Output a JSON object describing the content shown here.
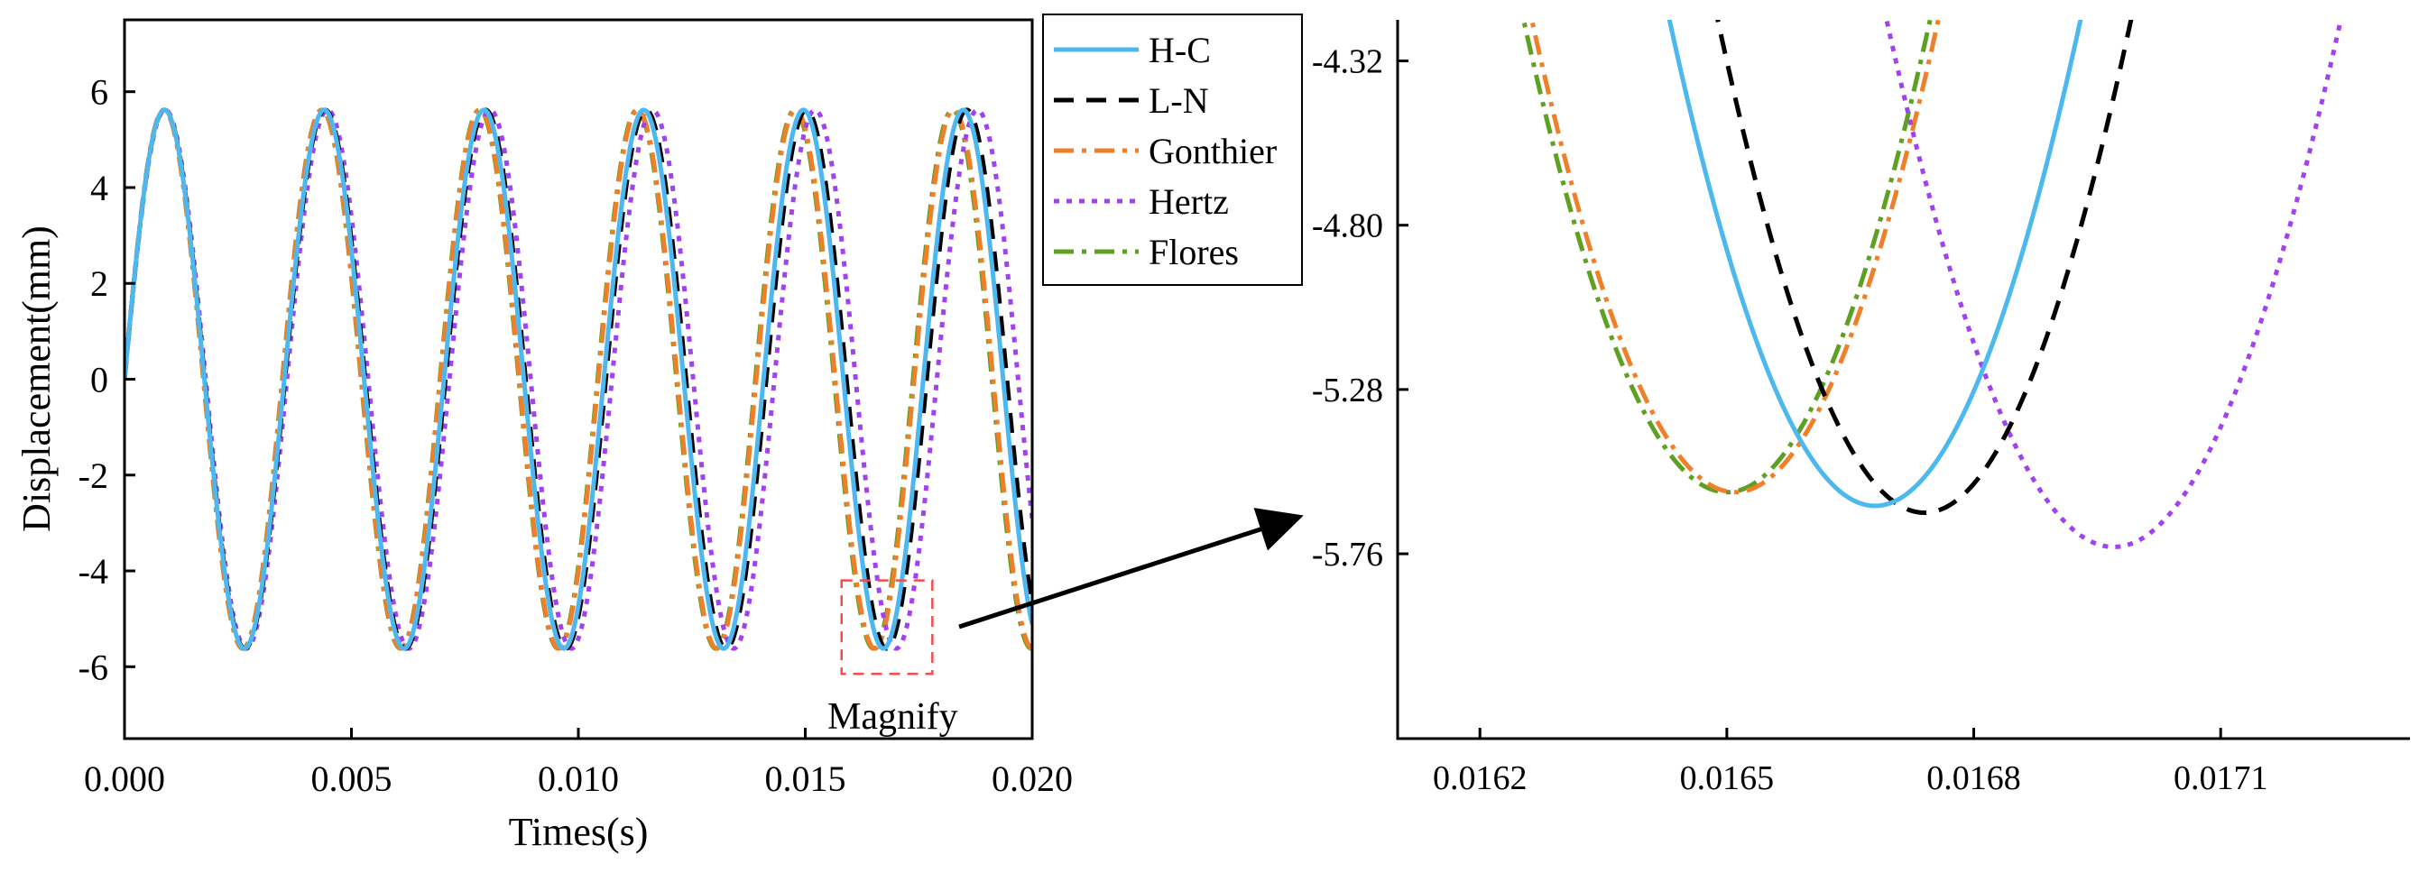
{
  "chart_data": [
    {
      "type": "line",
      "xlabel": "Times(s)",
      "ylabel": "Displacement(mm)",
      "xlim": [
        0,
        0.02
      ],
      "ylim": [
        -7.5,
        7.5
      ],
      "xticks": [
        0,
        0.005,
        0.01,
        0.015,
        0.02
      ],
      "xtick_labels": [
        "0.000",
        "0.005",
        "0.010",
        "0.015",
        "0.020"
      ],
      "yticks": [
        -6,
        -4,
        -2,
        0,
        2,
        4,
        6
      ],
      "ytick_labels": [
        "-6",
        "-4",
        "-2",
        "0",
        "2",
        "4",
        "6"
      ],
      "amplitude": 5.62,
      "series": [
        {
          "name": "H-C",
          "color": "#4DB8F0",
          "dash": "solid",
          "period": 0.00352,
          "phase": 0.0
        },
        {
          "name": "L-N",
          "color": "#000000",
          "dash": "dash",
          "period": 0.003535,
          "phase": 0.0
        },
        {
          "name": "Gonthier",
          "color": "#F07F2A",
          "dash": "dashdot",
          "period": 0.00348,
          "phase": 0.0
        },
        {
          "name": "Hertz",
          "color": "#A042F0",
          "dash": "dot",
          "period": 0.00358,
          "phase": 0.0
        },
        {
          "name": "Flores",
          "color": "#5EA021",
          "dash": "dashdot",
          "period": 0.003475,
          "phase": 0.0
        }
      ],
      "legend": {
        "position": "right",
        "entries": [
          "H-C",
          "L-N",
          "Gonthier",
          "Hertz",
          "Flores"
        ]
      },
      "annotation": {
        "label": "Magnify",
        "box_x": [
          0.0158,
          0.0178
        ],
        "box_y": [
          -6.15,
          -4.2
        ]
      }
    },
    {
      "type": "line",
      "title": "",
      "xlim": [
        0.0161,
        0.01733
      ],
      "ylim": [
        -6.3,
        -4.2
      ],
      "xticks": [
        0.0162,
        0.0165,
        0.0168,
        0.0171
      ],
      "xtick_labels": [
        "0.0162",
        "0.0165",
        "0.0168",
        "0.0171"
      ],
      "yticks": [
        -4.32,
        -4.8,
        -5.28,
        -5.76
      ],
      "ytick_labels": [
        "-4.32",
        "-4.80",
        "-5.28",
        "-5.76"
      ],
      "series": [
        {
          "name": "H-C",
          "color": "#4DB8F0",
          "dash": "solid",
          "min_x": 0.01668,
          "min_y": -5.62,
          "half_width": 0.00042
        },
        {
          "name": "L-N",
          "color": "#000000",
          "dash": "dash",
          "min_x": 0.01674,
          "min_y": -5.64,
          "half_width": 0.00042
        },
        {
          "name": "Gonthier",
          "color": "#F07F2A",
          "dash": "dashdot",
          "min_x": 0.01651,
          "min_y": -5.58,
          "half_width": 0.00042
        },
        {
          "name": "Hertz",
          "color": "#A042F0",
          "dash": "dot",
          "min_x": 0.01697,
          "min_y": -5.74,
          "half_width": 0.00045
        },
        {
          "name": "Flores",
          "color": "#5EA021",
          "dash": "dashdot",
          "min_x": 0.0165,
          "min_y": -5.58,
          "half_width": 0.00042
        }
      ]
    }
  ]
}
